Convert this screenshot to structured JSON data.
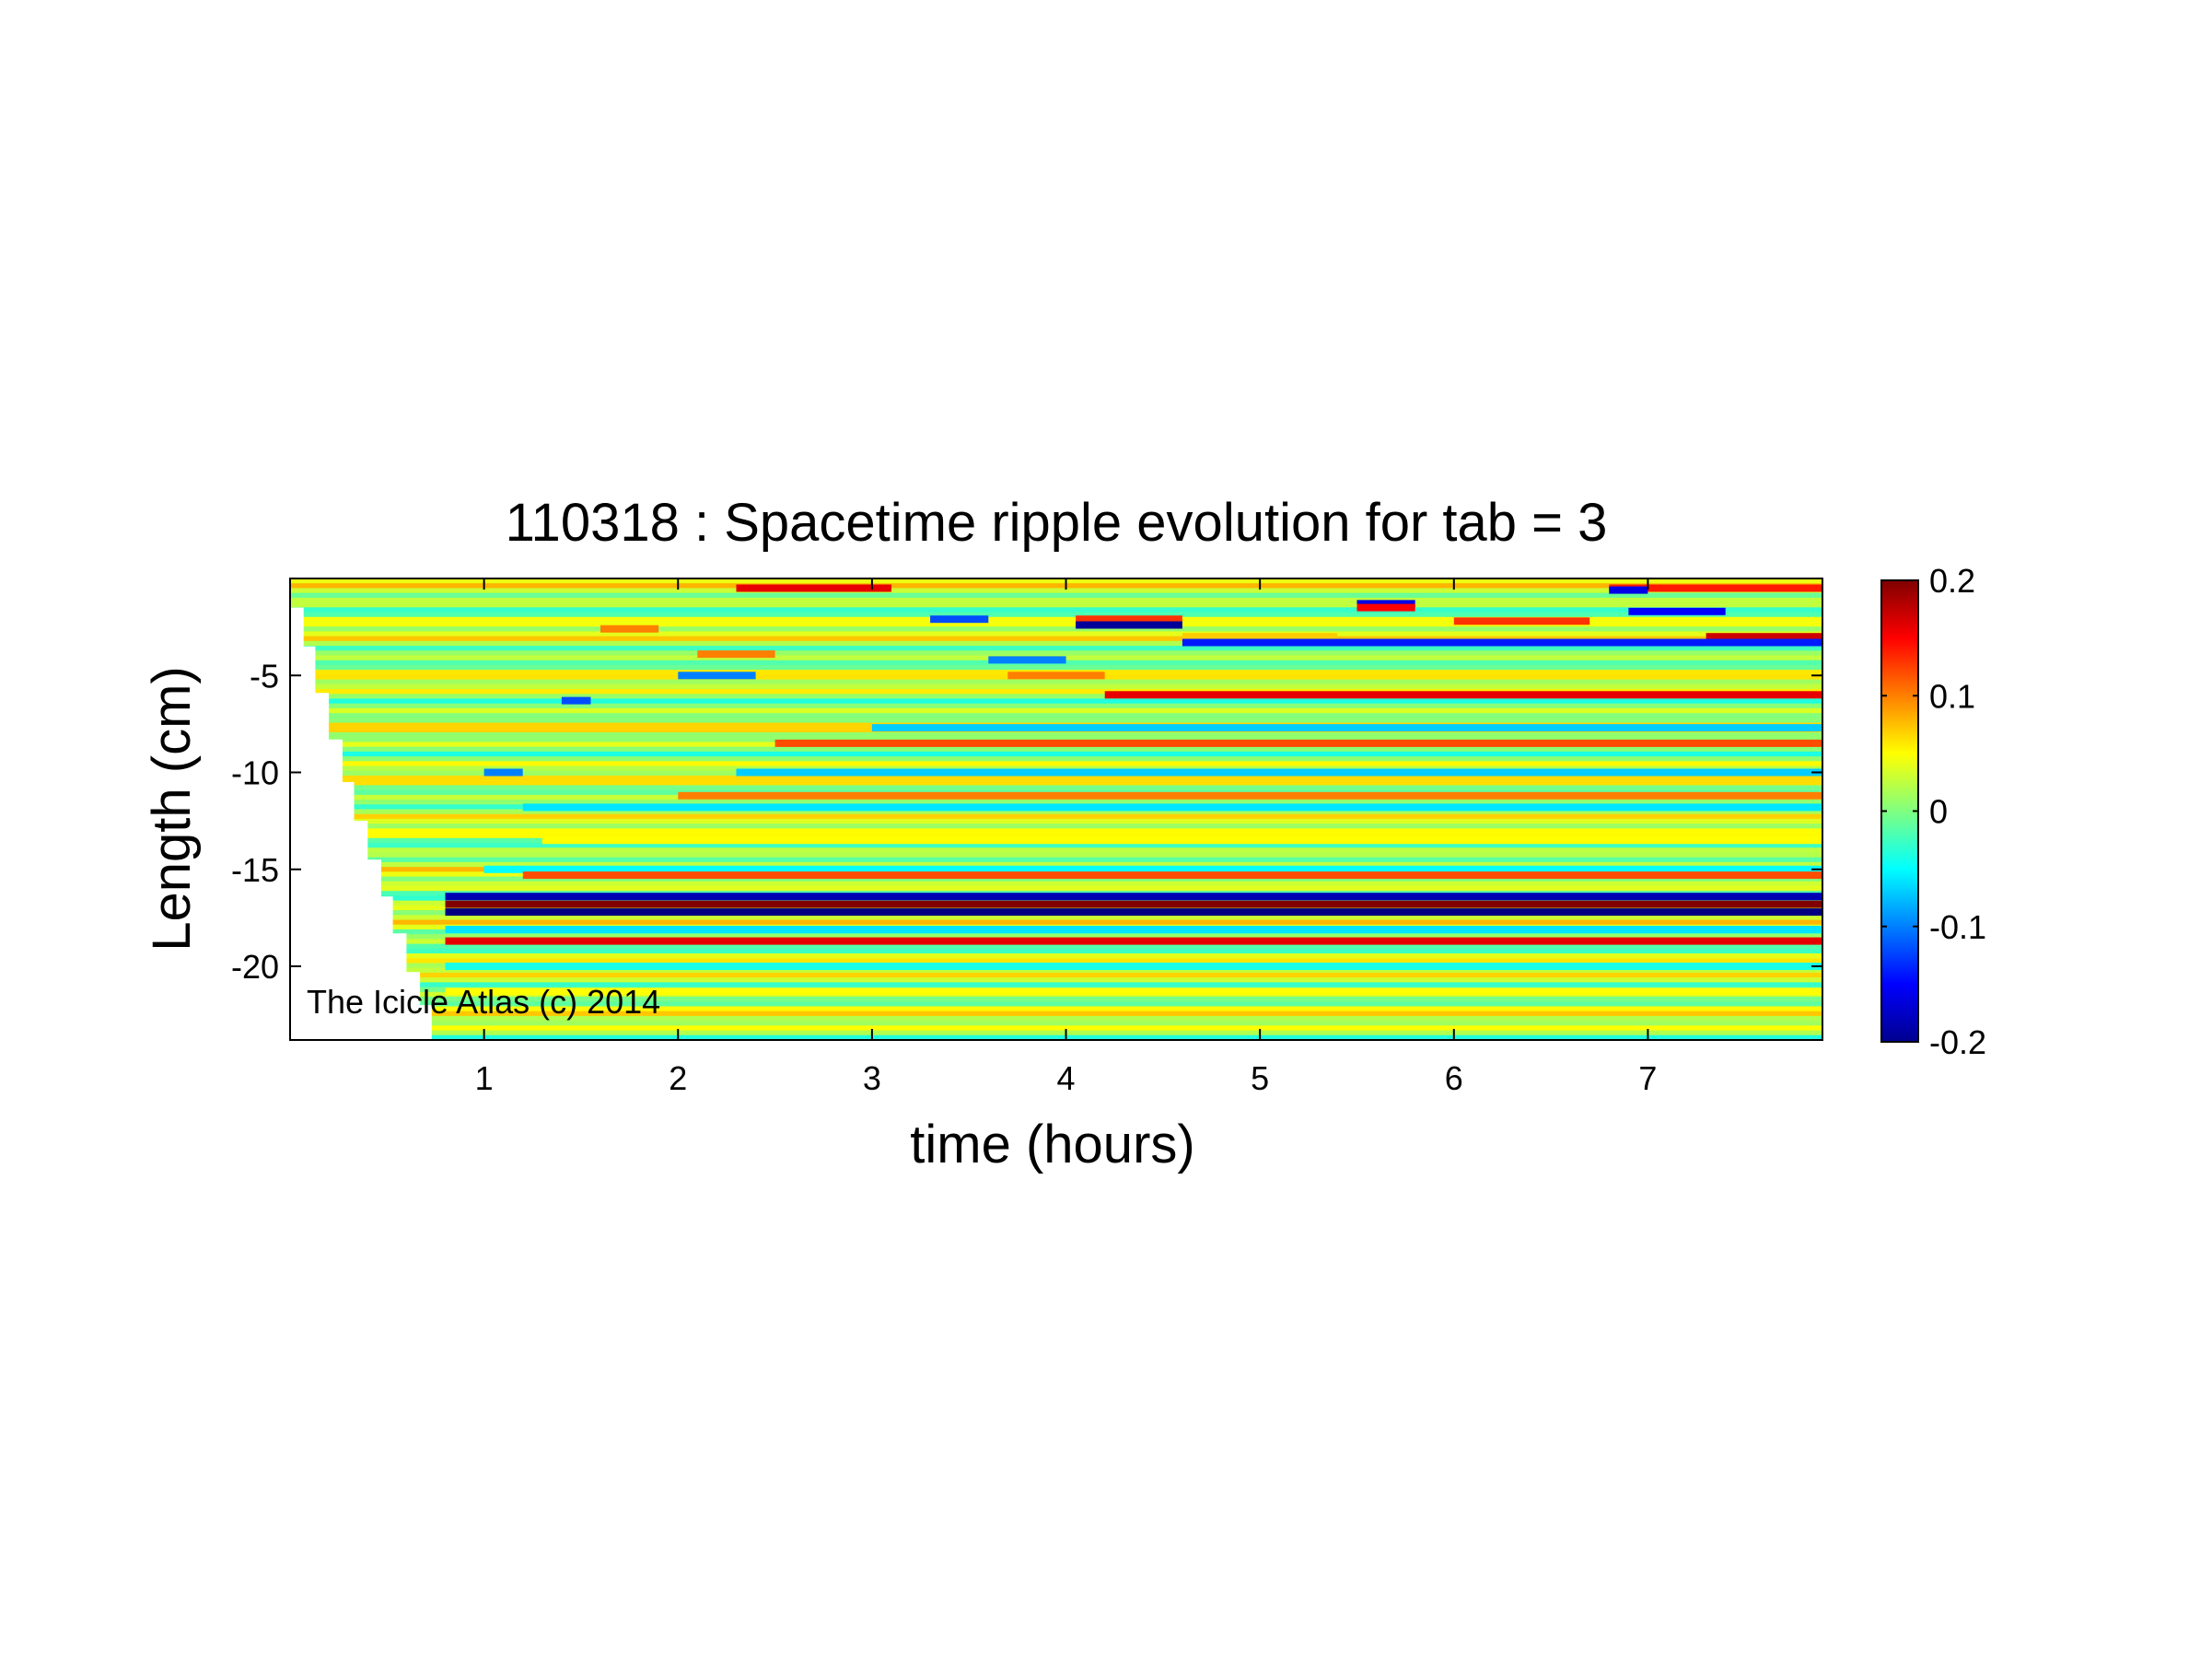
{
  "chart_data": {
    "type": "heatmap",
    "title": "110318 : Spacetime ripple evolution for tab = 3",
    "xlabel": "time (hours)",
    "ylabel": "Length (cm)",
    "xlim": [
      0,
      7.9
    ],
    "ylim": [
      -23.8,
      0
    ],
    "x_ticks": [
      1,
      2,
      3,
      4,
      5,
      6,
      7
    ],
    "x_tick_labels": [
      "1",
      "2",
      "3",
      "4",
      "5",
      "6",
      "7"
    ],
    "y_ticks": [
      -5,
      -10,
      -15,
      -20
    ],
    "y_tick_labels": [
      "-5",
      "-10",
      "-15",
      "-20"
    ],
    "colormap": "jet",
    "colorbar": {
      "range": [
        -0.2,
        0.2
      ],
      "ticks": [
        0.2,
        0.1,
        0,
        -0.1,
        -0.2
      ],
      "tick_labels": [
        "0.2",
        "0.1",
        "0",
        "-0.1",
        "-0.2"
      ]
    },
    "background_value": 0.02,
    "grid": false,
    "growth_front": [
      {
        "time": 0.0,
        "length": 0
      },
      {
        "time": 0.07,
        "length": -1.5
      },
      {
        "time": 0.13,
        "length": -3.5
      },
      {
        "time": 0.2,
        "length": -5.9
      },
      {
        "time": 0.27,
        "length": -8.3
      },
      {
        "time": 0.33,
        "length": -10.5
      },
      {
        "time": 0.4,
        "length": -12.5
      },
      {
        "time": 0.47,
        "length": -14.5
      },
      {
        "time": 0.53,
        "length": -16.4
      },
      {
        "time": 0.6,
        "length": -18.3
      },
      {
        "time": 0.67,
        "length": -20.3
      },
      {
        "time": 0.73,
        "length": -22.0
      },
      {
        "time": 0.8,
        "length": -23.8
      }
    ],
    "ripple_bands": [
      {
        "length": -0.5,
        "t_start": 2.3,
        "t_end": 3.1,
        "value": 0.16
      },
      {
        "length": -0.5,
        "t_start": 6.8,
        "t_end": 7.9,
        "value": 0.14
      },
      {
        "length": -0.6,
        "t_start": 6.8,
        "t_end": 7.0,
        "value": -0.16
      },
      {
        "length": -1.3,
        "t_start": 5.5,
        "t_end": 5.8,
        "value": -0.16
      },
      {
        "length": -1.5,
        "t_start": 5.5,
        "t_end": 5.8,
        "value": 0.15
      },
      {
        "length": -1.7,
        "t_start": 6.9,
        "t_end": 7.4,
        "value": -0.15
      },
      {
        "length": -2.1,
        "t_start": 3.3,
        "t_end": 3.6,
        "value": -0.12
      },
      {
        "length": -2.1,
        "t_start": 4.05,
        "t_end": 4.6,
        "value": 0.13
      },
      {
        "length": -2.2,
        "t_start": 6.0,
        "t_end": 6.7,
        "value": 0.13
      },
      {
        "length": -2.4,
        "t_start": 4.05,
        "t_end": 4.6,
        "value": -0.19
      },
      {
        "length": -2.6,
        "t_start": 1.6,
        "t_end": 1.9,
        "value": 0.1
      },
      {
        "length": -3.0,
        "t_start": 4.6,
        "t_end": 5.4,
        "value": 0.07
      },
      {
        "length": -3.0,
        "t_start": 7.3,
        "t_end": 7.9,
        "value": 0.17
      },
      {
        "length": -3.3,
        "t_start": 4.6,
        "t_end": 7.9,
        "value": -0.14
      },
      {
        "length": -3.9,
        "t_start": 2.1,
        "t_end": 2.5,
        "value": 0.1
      },
      {
        "length": -4.2,
        "t_start": 3.6,
        "t_end": 4.0,
        "value": -0.1
      },
      {
        "length": -5.0,
        "t_start": 2.0,
        "t_end": 2.4,
        "value": -0.1
      },
      {
        "length": -5.0,
        "t_start": 3.7,
        "t_end": 4.2,
        "value": 0.1
      },
      {
        "length": -6.0,
        "t_start": 4.2,
        "t_end": 7.9,
        "value": 0.16
      },
      {
        "length": -6.3,
        "t_start": 1.4,
        "t_end": 1.55,
        "value": -0.12
      },
      {
        "length": -7.7,
        "t_start": 3.0,
        "t_end": 7.9,
        "value": -0.07
      },
      {
        "length": -8.5,
        "t_start": 2.5,
        "t_end": 7.9,
        "value": 0.12
      },
      {
        "length": -10.0,
        "t_start": 2.3,
        "t_end": 7.9,
        "value": -0.07
      },
      {
        "length": -10.0,
        "t_start": 1.0,
        "t_end": 1.2,
        "value": -0.1
      },
      {
        "length": -11.2,
        "t_start": 2.0,
        "t_end": 7.9,
        "value": 0.1
      },
      {
        "length": -11.8,
        "t_start": 1.2,
        "t_end": 7.9,
        "value": -0.06
      },
      {
        "length": -13.5,
        "t_start": 1.3,
        "t_end": 7.9,
        "value": 0.05
      },
      {
        "length": -15.0,
        "t_start": 1.0,
        "t_end": 7.9,
        "value": -0.05
      },
      {
        "length": -15.3,
        "t_start": 1.2,
        "t_end": 7.9,
        "value": 0.12
      },
      {
        "length": -16.4,
        "t_start": 0.8,
        "t_end": 7.9,
        "value": -0.18
      },
      {
        "length": -16.8,
        "t_start": 0.8,
        "t_end": 7.9,
        "value": 0.2
      },
      {
        "length": -17.2,
        "t_start": 0.8,
        "t_end": 7.9,
        "value": -0.2
      },
      {
        "length": -18.1,
        "t_start": 0.8,
        "t_end": 7.9,
        "value": -0.06
      },
      {
        "length": -18.7,
        "t_start": 0.8,
        "t_end": 7.9,
        "value": 0.16
      },
      {
        "length": -20.0,
        "t_start": 0.8,
        "t_end": 7.9,
        "value": -0.04
      },
      {
        "length": -21.3,
        "t_start": 0.8,
        "t_end": 7.9,
        "value": 0.05
      }
    ],
    "annotations": [
      "The Icicle Atlas (c) 2014"
    ]
  }
}
